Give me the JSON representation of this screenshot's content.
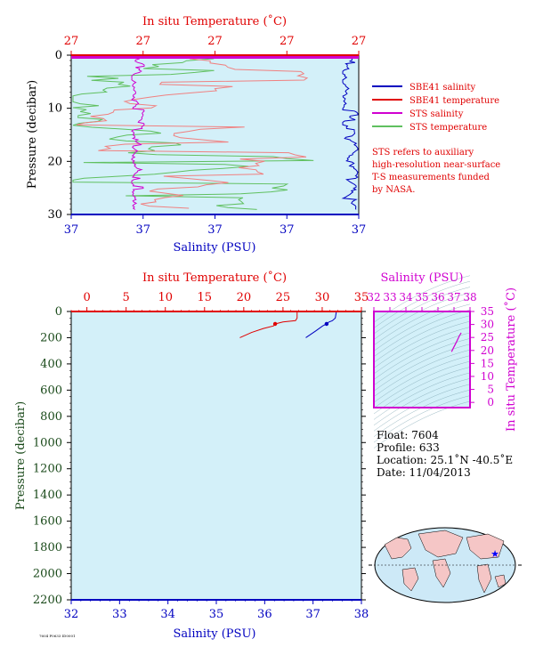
{
  "colors": {
    "plot_bg": "#d3f0f9",
    "red": "#e00000",
    "blue": "#0000c0",
    "magenta": "#d000d0",
    "green": "#60c060",
    "salmon": "#f08080",
    "pressure_label": "#1a4a1a",
    "land": "#f5c6c6",
    "ocean": "#cde9f7"
  },
  "chart_data": [
    {
      "type": "line",
      "title": "",
      "top_axis_label": "In situ Temperature (˚C)",
      "top_ticks": [
        "27",
        "27",
        "27",
        "27",
        "27"
      ],
      "bottom_axis_label": "Salinity (PSU)",
      "bottom_ticks": [
        "37",
        "37",
        "37",
        "37",
        "37"
      ],
      "ylabel": "Pressure (decibar)",
      "yticks": [
        "0",
        "10",
        "20",
        "30"
      ],
      "ylim": [
        30,
        0
      ],
      "legend": {
        "placement": "right",
        "entries": [
          {
            "label": "SBE41 salinity",
            "color": "#0000c0"
          },
          {
            "label": "SBE41 temperature",
            "color": "#e00000"
          },
          {
            "label": "STS salinity",
            "color": "#d000d0"
          },
          {
            "label": "STS temperature",
            "color": "#60c060"
          }
        ]
      },
      "note": [
        "STS refers to auxiliary",
        "high-resolution near-surface",
        "T-S measurements funded",
        "by NASA."
      ]
    },
    {
      "type": "line",
      "title": "",
      "top_axis_label": "In situ Temperature (˚C)",
      "top_ticks": [
        "0",
        "5",
        "10",
        "15",
        "20",
        "25",
        "30",
        "35"
      ],
      "xlim_temperature": [
        -2,
        35
      ],
      "bottom_axis_label": "Salinity (PSU)",
      "bottom_ticks": [
        "32",
        "33",
        "34",
        "35",
        "36",
        "37",
        "38"
      ],
      "xlim_salinity": [
        32,
        38
      ],
      "ylabel": "Pressure (decibar)",
      "yticks": [
        "0",
        "200",
        "400",
        "600",
        "800",
        "1000",
        "1200",
        "1400",
        "1600",
        "1800",
        "2000",
        "2200"
      ],
      "ylim": [
        2200,
        0
      ],
      "series": [
        {
          "color": "#e00000",
          "x": [
            26.8,
            26.8,
            26.6,
            25.0,
            24.0,
            23.8,
            22.5,
            21.0,
            19.5
          ],
          "y": [
            5,
            50,
            70,
            80,
            95,
            110,
            130,
            160,
            200
          ]
        },
        {
          "color": "#0000c0",
          "x": [
            37.48,
            37.46,
            37.4,
            37.33,
            37.28,
            37.2,
            37.05,
            36.85
          ],
          "y": [
            5,
            50,
            70,
            80,
            95,
            110,
            150,
            200
          ]
        }
      ]
    },
    {
      "type": "line",
      "title": "",
      "top_axis_label": "Salinity (PSU)",
      "top_ticks": [
        "32",
        "33",
        "34",
        "35",
        "36",
        "37",
        "38"
      ],
      "xlim": [
        32,
        38
      ],
      "right_axis_label": "In situ Temperature (˚C)",
      "right_ticks": [
        "0",
        "5",
        "10",
        "15",
        "20",
        "25",
        "30",
        "35"
      ],
      "ylim": [
        -2,
        35
      ],
      "series": [
        {
          "color": "#d000d0",
          "x": [
            36.85,
            36.95,
            37.05,
            37.15,
            37.25,
            37.35,
            37.45
          ],
          "y": [
            19.5,
            20.8,
            22.0,
            23.2,
            24.5,
            25.8,
            26.8
          ]
        }
      ]
    }
  ],
  "info": {
    "float": "Float:  7604",
    "profile": "Profile:  633",
    "location": "Location:  25.1˚N  -40.5˚E",
    "date": "Date:  11/04/2013"
  },
  "map": {
    "marker_label": "float-position"
  },
  "footer_code": "7604 P0633 ID0001"
}
